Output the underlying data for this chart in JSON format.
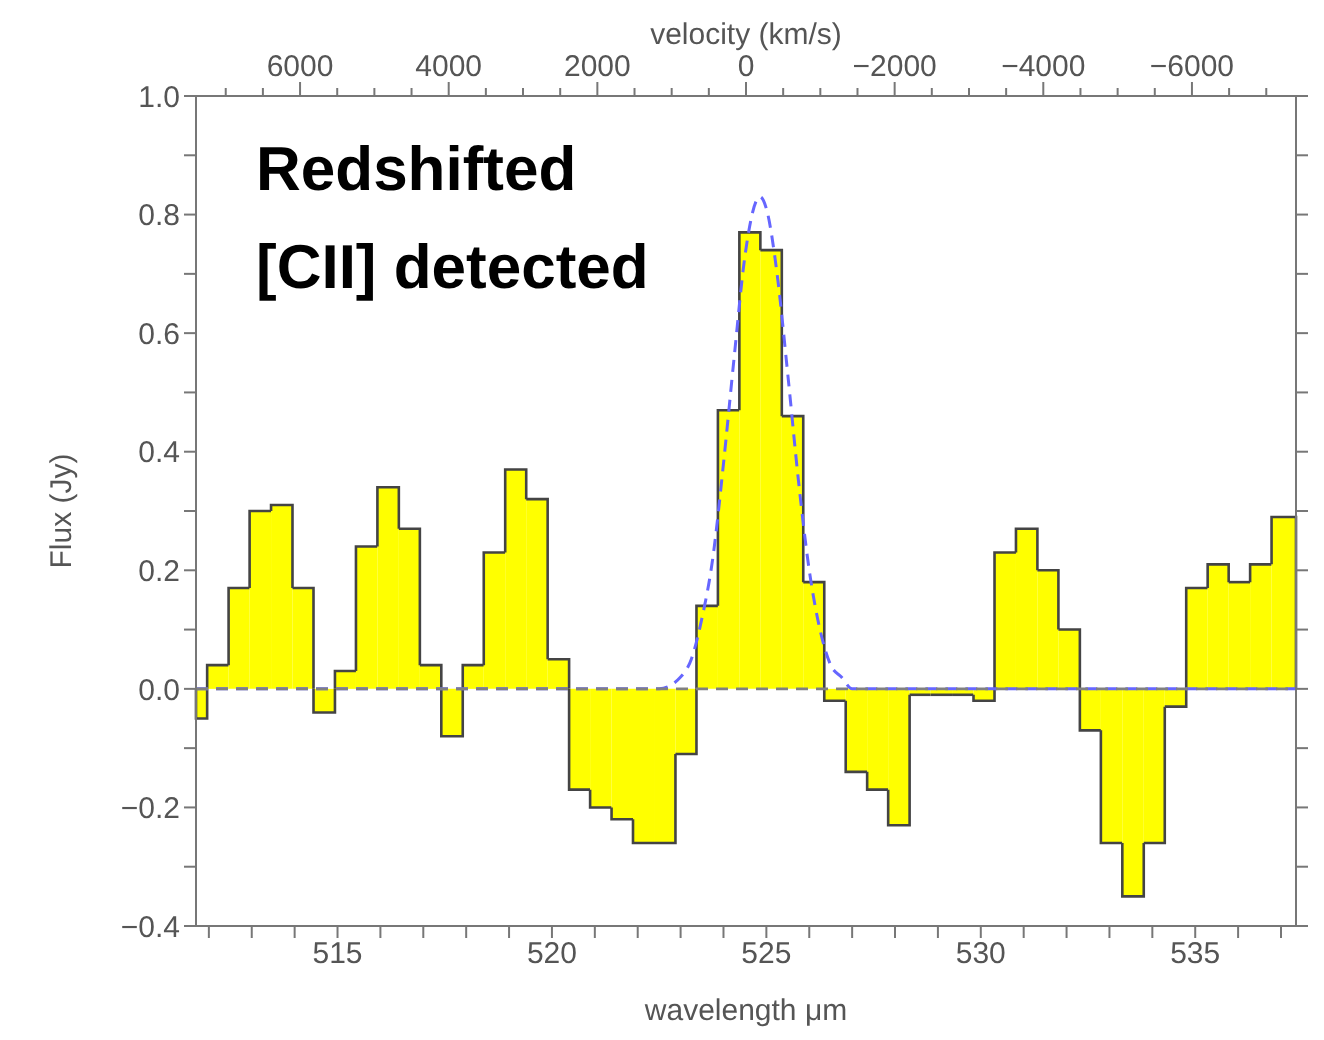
{
  "chart_data": {
    "type": "histogram",
    "xlabel": "wavelength μm",
    "ylabel": "Flux (Jy)",
    "x2label": "velocity (km/s)",
    "annotations": [
      "Redshifted\n[CII] detected"
    ],
    "xlim": [
      511.7,
      537.35
    ],
    "xticks": [
      {
        "value": 512,
        "label": null
      },
      {
        "value": 513,
        "label": null
      },
      {
        "value": 514,
        "label": null
      },
      515,
      {
        "value": 516,
        "label": null
      },
      {
        "value": 517,
        "label": null
      },
      {
        "value": 518,
        "label": null
      },
      {
        "value": 519,
        "label": null
      },
      520,
      {
        "value": 521,
        "label": null
      },
      {
        "value": 522,
        "label": null
      },
      {
        "value": 523,
        "label": null
      },
      {
        "value": 524,
        "label": null
      },
      525,
      {
        "value": 526,
        "label": null
      },
      {
        "value": 527,
        "label": null
      },
      {
        "value": 528,
        "label": null
      },
      {
        "value": 529,
        "label": null
      },
      530,
      {
        "value": 531,
        "label": null
      },
      {
        "value": 532,
        "label": null
      },
      {
        "value": 533,
        "label": null
      },
      {
        "value": 534,
        "label": null
      },
      535,
      {
        "value": 536,
        "label": null
      },
      {
        "value": 537,
        "label": null
      }
    ],
    "x2lim": [
      7400,
      -7400
    ],
    "x2ticks": [
      {
        "value": 7000,
        "label": null
      },
      {
        "value": 6500,
        "label": null
      },
      6000,
      {
        "value": 5500,
        "label": null
      },
      {
        "value": 5000,
        "label": null
      },
      {
        "value": 4500,
        "label": null
      },
      4000,
      {
        "value": 3500,
        "label": null
      },
      {
        "value": 3000,
        "label": null
      },
      {
        "value": 2500,
        "label": null
      },
      2000,
      {
        "value": 1500,
        "label": null
      },
      {
        "value": 1000,
        "label": null
      },
      {
        "value": 500,
        "label": null
      },
      0,
      {
        "value": -500,
        "label": null
      },
      {
        "value": -1000,
        "label": null
      },
      {
        "value": -1500,
        "label": null
      },
      {
        "value": -2000,
        "label": "−2000"
      },
      {
        "value": -2500,
        "label": null
      },
      {
        "value": -3000,
        "label": null
      },
      {
        "value": -3500,
        "label": null
      },
      {
        "value": -4000,
        "label": "−4000"
      },
      {
        "value": -4500,
        "label": null
      },
      {
        "value": -5000,
        "label": null
      },
      {
        "value": -5500,
        "label": null
      },
      {
        "value": -6000,
        "label": "−6000"
      },
      {
        "value": -6500,
        "label": null
      },
      {
        "value": -7000,
        "label": null
      }
    ],
    "ylim": [
      -0.4,
      1.0
    ],
    "yticks": [
      {
        "value": -0.4,
        "label": "−0.4"
      },
      {
        "value": -0.3,
        "label": null
      },
      {
        "value": -0.2,
        "label": "−0.2"
      },
      {
        "value": -0.1,
        "label": null
      },
      {
        "value": 0,
        "label": "0.0"
      },
      {
        "value": 0.1,
        "label": null
      },
      {
        "value": 0.2,
        "label": "0.2"
      },
      {
        "value": 0.3,
        "label": null
      },
      {
        "value": 0.4,
        "label": "0.4"
      },
      {
        "value": 0.5,
        "label": null
      },
      {
        "value": 0.6,
        "label": "0.6"
      },
      {
        "value": 0.7,
        "label": null
      },
      {
        "value": 0.8,
        "label": "0.8"
      },
      {
        "value": 0.9,
        "label": null
      },
      {
        "value": 1.0,
        "label": "1.0"
      }
    ],
    "ref_lines": [
      {
        "axis": "y",
        "value": 0,
        "color": "#808080",
        "line_style": "dashed"
      }
    ],
    "series": [
      {
        "type": "histogram",
        "color": "#ffff00",
        "bins": [
          511.7,
          511.96,
          512.46,
          512.95,
          513.45,
          513.95,
          514.44,
          514.94,
          515.43,
          515.93,
          516.43,
          516.92,
          517.42,
          517.92,
          518.41,
          518.91,
          519.4,
          519.9,
          520.4,
          520.89,
          521.39,
          521.89,
          522.38,
          522.88,
          523.37,
          523.87,
          524.37,
          524.86,
          525.36,
          525.86,
          526.35,
          526.85,
          527.35,
          527.84,
          528.34,
          528.83,
          529.33,
          529.83,
          530.32,
          530.82,
          531.32,
          531.81,
          532.31,
          532.8,
          533.3,
          533.8,
          534.29,
          534.79,
          535.29,
          535.78,
          536.28,
          536.78,
          537.35
        ],
        "values": [
          -0.05,
          0.04,
          0.17,
          0.3,
          0.31,
          0.17,
          -0.04,
          0.03,
          0.24,
          0.34,
          0.27,
          0.04,
          -0.08,
          0.04,
          0.23,
          0.37,
          0.32,
          0.05,
          -0.17,
          -0.2,
          -0.22,
          -0.26,
          -0.26,
          -0.11,
          0.14,
          0.47,
          0.77,
          0.74,
          0.46,
          0.18,
          -0.02,
          -0.14,
          -0.17,
          -0.23,
          -0.01,
          -0.01,
          -0.01,
          -0.02,
          0.23,
          0.27,
          0.2,
          0.1,
          -0.07,
          -0.26,
          -0.35,
          -0.26,
          -0.03,
          0.17,
          0.21,
          0.18,
          0.21,
          0.29
        ]
      },
      {
        "type": "line",
        "color": "#6666ff",
        "line_style": "dashed",
        "x": [
          511.7,
          522.5,
          523.0,
          523.25,
          523.5,
          523.75,
          524.0,
          524.25,
          524.5,
          524.85,
          525.0,
          525.25,
          525.5,
          525.75,
          526.0,
          526.25,
          526.5,
          526.75,
          527.0,
          537.35
        ],
        "values": [
          0,
          0,
          0.02,
          0.05,
          0.12,
          0.22,
          0.38,
          0.56,
          0.73,
          0.83,
          0.81,
          0.7,
          0.53,
          0.35,
          0.2,
          0.1,
          0.04,
          0.02,
          0,
          0
        ]
      }
    ]
  }
}
